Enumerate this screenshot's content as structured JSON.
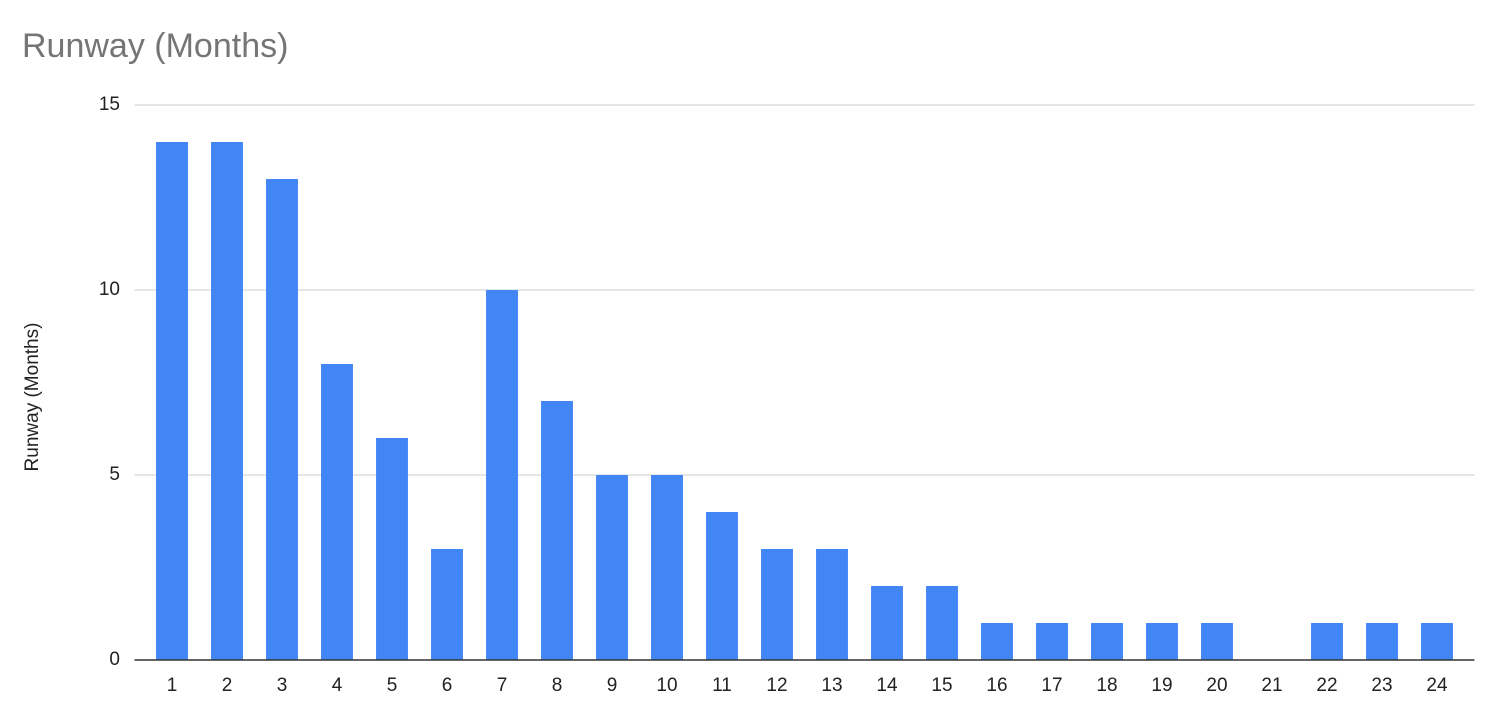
{
  "chart_data": {
    "type": "bar",
    "title": "Runway (Months)",
    "y_label": "Runway (Months)",
    "categories": [
      "1",
      "2",
      "3",
      "4",
      "5",
      "6",
      "7",
      "8",
      "9",
      "10",
      "11",
      "12",
      "13",
      "14",
      "15",
      "16",
      "17",
      "18",
      "19",
      "20",
      "21",
      "22",
      "23",
      "24"
    ],
    "values": [
      14,
      14,
      13,
      8,
      6,
      3,
      10,
      7,
      5,
      5,
      4,
      3,
      3,
      2,
      2,
      1,
      1,
      1,
      1,
      1,
      0,
      1,
      1,
      1
    ],
    "color": "#4285f4",
    "ylim": [
      0,
      15
    ],
    "yticks": [
      0,
      5,
      10,
      15
    ],
    "grid": true
  }
}
